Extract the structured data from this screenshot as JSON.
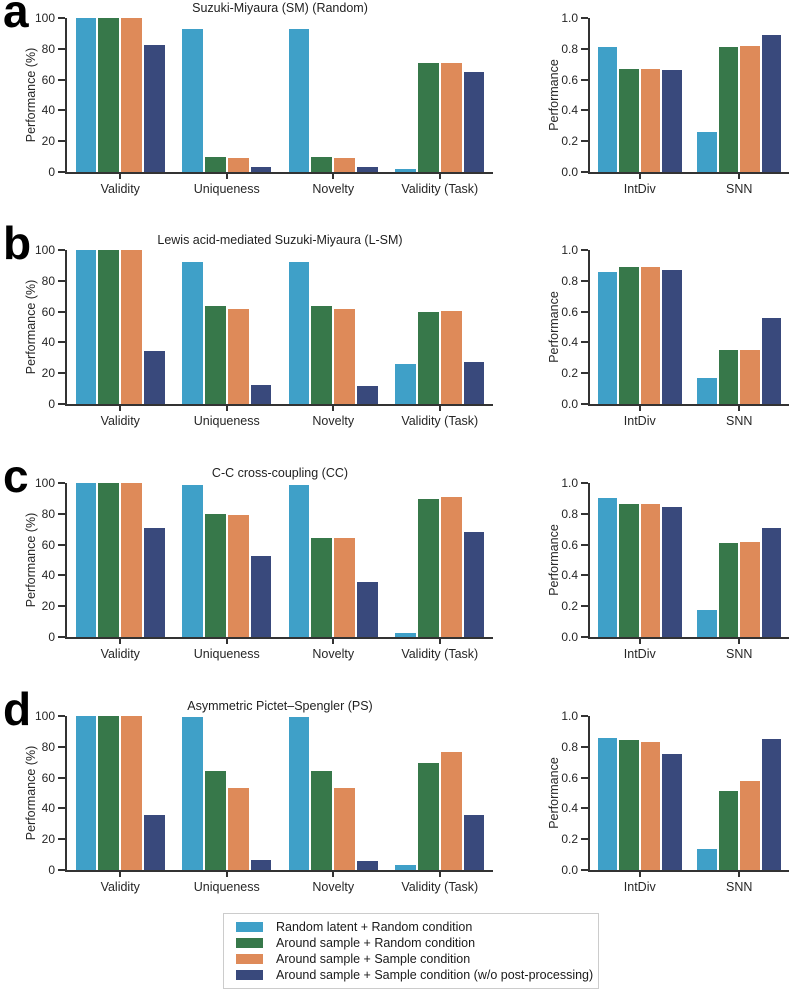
{
  "colors": {
    "background": "#FFFFFF",
    "axis": "#333333",
    "text": "#262626",
    "legend_border": "#CCCCCC"
  },
  "legend": {
    "items": [
      {
        "label": "Random latent + Random condition",
        "color": "#3FA0C8"
      },
      {
        "label": "Around sample + Random condition",
        "color": "#37784A"
      },
      {
        "label": "Around sample + Sample condition",
        "color": "#DE8A59"
      },
      {
        "label": "Around sample + Sample condition (w/o post-processing)",
        "color": "#39497C"
      }
    ]
  },
  "chart_data": [
    {
      "panel": "a",
      "title": "Suzuki-Miyaura (SM) (Random)",
      "charts": [
        {
          "type": "bar",
          "ylabel": "Performance (%)",
          "ylim": [
            0,
            100
          ],
          "yticks": [
            "0",
            "20",
            "40",
            "60",
            "80",
            "100"
          ],
          "categories": [
            "Validity",
            "Uniqueness",
            "Novelty",
            "Validity (Task)"
          ],
          "series": [
            {
              "name": "Random latent + Random condition",
              "values": [
                100,
                93,
                93,
                2
              ]
            },
            {
              "name": "Around sample + Random condition",
              "values": [
                100,
                9.5,
                9.5,
                71
              ]
            },
            {
              "name": "Around sample + Sample condition",
              "values": [
                100,
                9,
                9,
                71
              ]
            },
            {
              "name": "Around sample + Sample condition (w/o post-processing)",
              "values": [
                82.5,
                3.5,
                3.5,
                65
              ]
            }
          ]
        },
        {
          "type": "bar",
          "ylabel": "Performance",
          "ylim": [
            0,
            1
          ],
          "yticks": [
            "0.0",
            "0.2",
            "0.4",
            "0.6",
            "0.8",
            "1.0"
          ],
          "categories": [
            "IntDiv",
            "SNN"
          ],
          "series": [
            {
              "name": "Random latent + Random condition",
              "values": [
                0.81,
                0.26
              ]
            },
            {
              "name": "Around sample + Random condition",
              "values": [
                0.67,
                0.81
              ]
            },
            {
              "name": "Around sample + Sample condition",
              "values": [
                0.67,
                0.82
              ]
            },
            {
              "name": "Around sample + Sample condition (w/o post-processing)",
              "values": [
                0.66,
                0.89
              ]
            }
          ]
        }
      ]
    },
    {
      "panel": "b",
      "title": "Lewis acid-mediated Suzuki-Miyaura (L-SM)",
      "charts": [
        {
          "type": "bar",
          "ylabel": "Performance (%)",
          "ylim": [
            0,
            100
          ],
          "yticks": [
            "0",
            "20",
            "40",
            "60",
            "80",
            "100"
          ],
          "categories": [
            "Validity",
            "Uniqueness",
            "Novelty",
            "Validity (Task)"
          ],
          "series": [
            {
              "name": "Random latent + Random condition",
              "values": [
                100,
                92,
                92,
                26
              ]
            },
            {
              "name": "Around sample + Random condition",
              "values": [
                100,
                63.5,
                63.5,
                60
              ]
            },
            {
              "name": "Around sample + Sample condition",
              "values": [
                100,
                62,
                62,
                60.5
              ]
            },
            {
              "name": "Around sample + Sample condition (w/o post-processing)",
              "values": [
                34.5,
                12.5,
                12,
                27.5
              ]
            }
          ]
        },
        {
          "type": "bar",
          "ylabel": "Performance",
          "ylim": [
            0,
            1
          ],
          "yticks": [
            "0.0",
            "0.2",
            "0.4",
            "0.6",
            "0.8",
            "1.0"
          ],
          "categories": [
            "IntDiv",
            "SNN"
          ],
          "series": [
            {
              "name": "Random latent + Random condition",
              "values": [
                0.86,
                0.17
              ]
            },
            {
              "name": "Around sample + Random condition",
              "values": [
                0.89,
                0.35
              ]
            },
            {
              "name": "Around sample + Sample condition",
              "values": [
                0.89,
                0.35
              ]
            },
            {
              "name": "Around sample + Sample condition (w/o post-processing)",
              "values": [
                0.87,
                0.56
              ]
            }
          ]
        }
      ]
    },
    {
      "panel": "c",
      "title": "C-C cross-coupling (CC)",
      "charts": [
        {
          "type": "bar",
          "ylabel": "Performance (%)",
          "ylim": [
            0,
            100
          ],
          "yticks": [
            "0",
            "20",
            "40",
            "60",
            "80",
            "100"
          ],
          "categories": [
            "Validity",
            "Uniqueness",
            "Novelty",
            "Validity (Task)"
          ],
          "series": [
            {
              "name": "Random latent + Random condition",
              "values": [
                100,
                99,
                99,
                2.5
              ]
            },
            {
              "name": "Around sample + Random condition",
              "values": [
                100,
                80,
                64.5,
                89.5
              ]
            },
            {
              "name": "Around sample + Sample condition",
              "values": [
                100,
                79.5,
                64,
                91
              ]
            },
            {
              "name": "Around sample + Sample condition (w/o post-processing)",
              "values": [
                71,
                52.5,
                36,
                68.5
              ]
            }
          ]
        },
        {
          "type": "bar",
          "ylabel": "Performance",
          "ylim": [
            0,
            1
          ],
          "yticks": [
            "0.0",
            "0.2",
            "0.4",
            "0.6",
            "0.8",
            "1.0"
          ],
          "categories": [
            "IntDiv",
            "SNN"
          ],
          "series": [
            {
              "name": "Random latent + Random condition",
              "values": [
                0.9,
                0.175
              ]
            },
            {
              "name": "Around sample + Random condition",
              "values": [
                0.865,
                0.61
              ]
            },
            {
              "name": "Around sample + Sample condition",
              "values": [
                0.865,
                0.615
              ]
            },
            {
              "name": "Around sample + Sample condition (w/o post-processing)",
              "values": [
                0.845,
                0.71
              ]
            }
          ]
        }
      ]
    },
    {
      "panel": "d",
      "title": "Asymmetric Pictet–Spengler (PS)",
      "charts": [
        {
          "type": "bar",
          "ylabel": "Performance (%)",
          "ylim": [
            0,
            100
          ],
          "yticks": [
            "0",
            "20",
            "40",
            "60",
            "80",
            "100"
          ],
          "categories": [
            "Validity",
            "Uniqueness",
            "Novelty",
            "Validity (Task)"
          ],
          "series": [
            {
              "name": "Random latent + Random condition",
              "values": [
                100,
                99.5,
                99.5,
                3.5
              ]
            },
            {
              "name": "Around sample + Random condition",
              "values": [
                100,
                64.5,
                64.5,
                69.5
              ]
            },
            {
              "name": "Around sample + Sample condition",
              "values": [
                100,
                53,
                53,
                76.5
              ]
            },
            {
              "name": "Around sample + Sample condition (w/o post-processing)",
              "values": [
                36,
                6.5,
                6,
                35.5
              ]
            }
          ]
        },
        {
          "type": "bar",
          "ylabel": "Performance",
          "ylim": [
            0,
            1
          ],
          "yticks": [
            "0.0",
            "0.2",
            "0.4",
            "0.6",
            "0.8",
            "1.0"
          ],
          "categories": [
            "IntDiv",
            "SNN"
          ],
          "series": [
            {
              "name": "Random latent + Random condition",
              "values": [
                0.855,
                0.135
              ]
            },
            {
              "name": "Around sample + Random condition",
              "values": [
                0.845,
                0.51
              ]
            },
            {
              "name": "Around sample + Sample condition",
              "values": [
                0.83,
                0.58
              ]
            },
            {
              "name": "Around sample + Sample condition (w/o post-processing)",
              "values": [
                0.755,
                0.85
              ]
            }
          ]
        }
      ]
    }
  ]
}
